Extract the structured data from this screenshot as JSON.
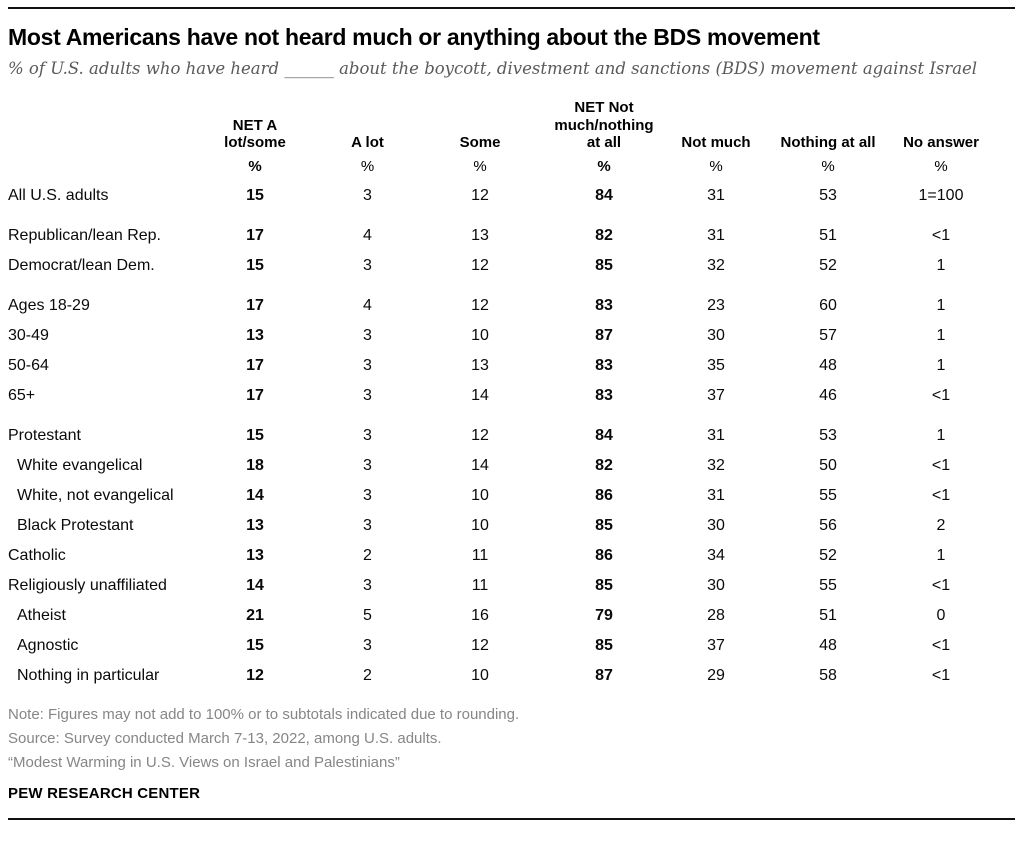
{
  "header": {
    "title": "Most Americans have not heard much or anything about the BDS movement",
    "subtitle": "% of U.S. adults who have heard ______ about the boycott, divestment and sanctions (BDS) movement against Israel"
  },
  "table": {
    "column_display": [
      "NET A\nlot/some",
      "A lot",
      "Some",
      "NET Not\nmuch/nothing\nat all",
      "Not much",
      "Nothing at all",
      "No answer"
    ],
    "percent_sign": "%"
  },
  "chart_data": {
    "type": "table",
    "title": "Most Americans have not heard much or anything about the BDS movement",
    "subtitle": "% of U.S. adults who have heard ______ about the boycott, divestment and sanctions (BDS) movement against Israel",
    "unit": "%",
    "columns": [
      "NET A lot/some",
      "A lot",
      "Some",
      "NET Not much/nothing at all",
      "Not much",
      "Nothing at all",
      "No answer"
    ],
    "bold_columns": [
      0,
      3
    ],
    "rows": [
      {
        "label": "All U.S. adults",
        "indent": false,
        "group_start": false,
        "values": [
          "15",
          "3",
          "12",
          "84",
          "31",
          "53",
          "1=100"
        ]
      },
      {
        "label": "Republican/lean Rep.",
        "indent": false,
        "group_start": true,
        "values": [
          "17",
          "4",
          "13",
          "82",
          "31",
          "51",
          "<1"
        ]
      },
      {
        "label": "Democrat/lean Dem.",
        "indent": false,
        "group_start": false,
        "values": [
          "15",
          "3",
          "12",
          "85",
          "32",
          "52",
          "1"
        ]
      },
      {
        "label": "Ages 18-29",
        "indent": false,
        "group_start": true,
        "values": [
          "17",
          "4",
          "12",
          "83",
          "23",
          "60",
          "1"
        ]
      },
      {
        "label": "30-49",
        "indent": false,
        "group_start": false,
        "values": [
          "13",
          "3",
          "10",
          "87",
          "30",
          "57",
          "1"
        ]
      },
      {
        "label": "50-64",
        "indent": false,
        "group_start": false,
        "values": [
          "17",
          "3",
          "13",
          "83",
          "35",
          "48",
          "1"
        ]
      },
      {
        "label": "65+",
        "indent": false,
        "group_start": false,
        "values": [
          "17",
          "3",
          "14",
          "83",
          "37",
          "46",
          "<1"
        ]
      },
      {
        "label": "Protestant",
        "indent": false,
        "group_start": true,
        "values": [
          "15",
          "3",
          "12",
          "84",
          "31",
          "53",
          "1"
        ]
      },
      {
        "label": "White evangelical",
        "indent": true,
        "group_start": false,
        "values": [
          "18",
          "3",
          "14",
          "82",
          "32",
          "50",
          "<1"
        ]
      },
      {
        "label": "White, not evangelical",
        "indent": true,
        "group_start": false,
        "values": [
          "14",
          "3",
          "10",
          "86",
          "31",
          "55",
          "<1"
        ]
      },
      {
        "label": "Black Protestant",
        "indent": true,
        "group_start": false,
        "values": [
          "13",
          "3",
          "10",
          "85",
          "30",
          "56",
          "2"
        ]
      },
      {
        "label": "Catholic",
        "indent": false,
        "group_start": false,
        "values": [
          "13",
          "2",
          "11",
          "86",
          "34",
          "52",
          "1"
        ]
      },
      {
        "label": "Religiously unaffiliated",
        "indent": false,
        "group_start": false,
        "values": [
          "14",
          "3",
          "11",
          "85",
          "30",
          "55",
          "<1"
        ]
      },
      {
        "label": "Atheist",
        "indent": true,
        "group_start": false,
        "values": [
          "21",
          "5",
          "16",
          "79",
          "28",
          "51",
          "0"
        ]
      },
      {
        "label": "Agnostic",
        "indent": true,
        "group_start": false,
        "values": [
          "15",
          "3",
          "12",
          "85",
          "37",
          "48",
          "<1"
        ]
      },
      {
        "label": "Nothing in particular",
        "indent": true,
        "group_start": false,
        "values": [
          "12",
          "2",
          "10",
          "87",
          "29",
          "58",
          "<1"
        ]
      }
    ]
  },
  "footer": {
    "note": "Note: Figures may not add to 100% or to subtotals indicated due to rounding.",
    "source": "Source: Survey conducted March 7-13, 2022, among U.S. adults.",
    "citation": "“Modest Warming in U.S. Views on Israel and Palestinians”",
    "brand": "PEW RESEARCH CENTER"
  },
  "colors": {
    "text": "#000000",
    "subtitle_gray": "#5a5a5c",
    "note_gray": "#868686",
    "rule": "#111111"
  }
}
